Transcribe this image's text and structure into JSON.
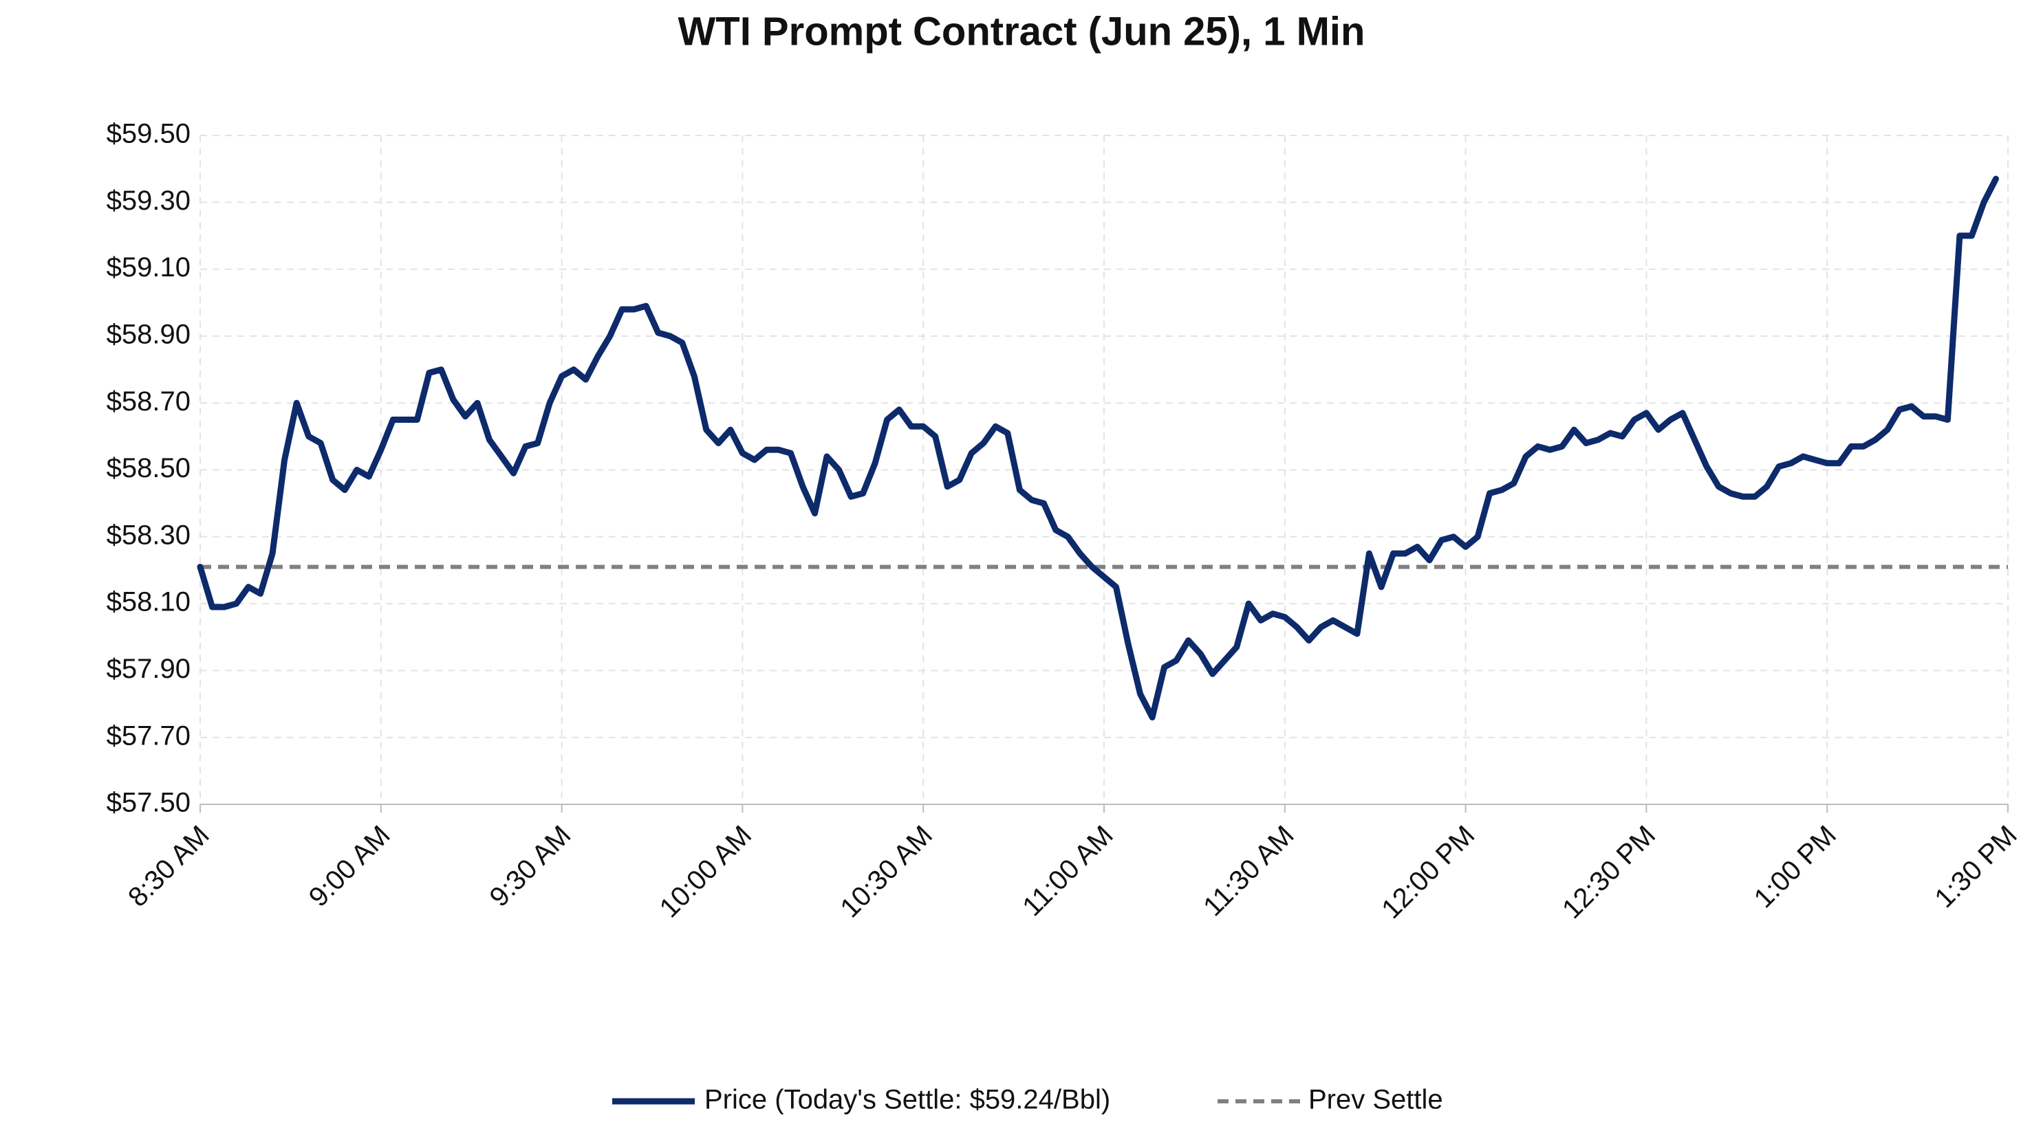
{
  "chart_data": {
    "type": "line",
    "title": "WTI Prompt Contract (Jun 25), 1 Min",
    "x": [
      "8:30 AM",
      "8:32 AM",
      "8:34 AM",
      "8:36 AM",
      "8:38 AM",
      "8:40 AM",
      "8:42 AM",
      "8:44 AM",
      "8:46 AM",
      "8:48 AM",
      "8:50 AM",
      "8:52 AM",
      "8:54 AM",
      "8:56 AM",
      "8:58 AM",
      "9:00 AM",
      "9:02 AM",
      "9:04 AM",
      "9:06 AM",
      "9:08 AM",
      "9:10 AM",
      "9:12 AM",
      "9:14 AM",
      "9:16 AM",
      "9:18 AM",
      "9:20 AM",
      "9:22 AM",
      "9:24 AM",
      "9:26 AM",
      "9:28 AM",
      "9:30 AM",
      "9:32 AM",
      "9:34 AM",
      "9:36 AM",
      "9:38 AM",
      "9:40 AM",
      "9:42 AM",
      "9:44 AM",
      "9:46 AM",
      "9:48 AM",
      "9:50 AM",
      "9:52 AM",
      "9:54 AM",
      "9:56 AM",
      "9:58 AM",
      "10:00 AM",
      "10:02 AM",
      "10:04 AM",
      "10:06 AM",
      "10:08 AM",
      "10:10 AM",
      "10:12 AM",
      "10:14 AM",
      "10:16 AM",
      "10:18 AM",
      "10:20 AM",
      "10:22 AM",
      "10:24 AM",
      "10:26 AM",
      "10:28 AM",
      "10:30 AM",
      "10:32 AM",
      "10:34 AM",
      "10:36 AM",
      "10:38 AM",
      "10:40 AM",
      "10:42 AM",
      "10:44 AM",
      "10:46 AM",
      "10:48 AM",
      "10:50 AM",
      "10:52 AM",
      "10:54 AM",
      "10:56 AM",
      "10:58 AM",
      "11:00 AM",
      "11:02 AM",
      "11:04 AM",
      "11:06 AM",
      "11:08 AM",
      "11:10 AM",
      "11:12 AM",
      "11:14 AM",
      "11:16 AM",
      "11:18 AM",
      "11:20 AM",
      "11:22 AM",
      "11:24 AM",
      "11:26 AM",
      "11:28 AM",
      "11:30 AM",
      "11:32 AM",
      "11:34 AM",
      "11:36 AM",
      "11:38 AM",
      "11:40 AM",
      "11:42 AM",
      "11:44 AM",
      "11:46 AM",
      "11:48 AM",
      "11:50 AM",
      "11:52 AM",
      "11:54 AM",
      "11:56 AM",
      "11:58 AM",
      "12:00 PM",
      "12:02 PM",
      "12:04 PM",
      "12:06 PM",
      "12:08 PM",
      "12:10 PM",
      "12:12 PM",
      "12:14 PM",
      "12:16 PM",
      "12:18 PM",
      "12:20 PM",
      "12:22 PM",
      "12:24 PM",
      "12:26 PM",
      "12:28 PM",
      "12:30 PM",
      "12:32 PM",
      "12:34 PM",
      "12:36 PM",
      "12:38 PM",
      "12:40 PM",
      "12:42 PM",
      "12:44 PM",
      "12:46 PM",
      "12:48 PM",
      "12:50 PM",
      "12:52 PM",
      "12:54 PM",
      "12:56 PM",
      "12:58 PM",
      "1:00 PM",
      "1:02 PM",
      "1:04 PM",
      "1:06 PM",
      "1:08 PM",
      "1:10 PM",
      "1:12 PM",
      "1:14 PM",
      "1:16 PM",
      "1:18 PM",
      "1:20 PM",
      "1:22 PM",
      "1:24 PM",
      "1:26 PM",
      "1:28 PM"
    ],
    "series": [
      {
        "name": "Price (Today's Settle: $59.24/Bbl)",
        "color": "#0d2a6b",
        "values": [
          58.21,
          58.09,
          58.09,
          58.1,
          58.15,
          58.13,
          58.25,
          58.53,
          58.7,
          58.6,
          58.58,
          58.47,
          58.44,
          58.5,
          58.48,
          58.56,
          58.65,
          58.65,
          58.65,
          58.79,
          58.8,
          58.71,
          58.66,
          58.7,
          58.59,
          58.54,
          58.49,
          58.57,
          58.58,
          58.7,
          58.78,
          58.8,
          58.77,
          58.84,
          58.9,
          58.98,
          58.98,
          58.99,
          58.91,
          58.9,
          58.88,
          58.78,
          58.62,
          58.58,
          58.62,
          58.55,
          58.53,
          58.56,
          58.56,
          58.55,
          58.45,
          58.37,
          58.54,
          58.5,
          58.42,
          58.43,
          58.52,
          58.65,
          58.68,
          58.63,
          58.63,
          58.6,
          58.45,
          58.47,
          58.55,
          58.58,
          58.63,
          58.61,
          58.44,
          58.41,
          58.4,
          58.32,
          58.3,
          58.25,
          58.21,
          58.18,
          58.15,
          57.98,
          57.83,
          57.76,
          57.91,
          57.93,
          57.99,
          57.95,
          57.89,
          57.93,
          57.97,
          58.1,
          58.05,
          58.07,
          58.06,
          58.03,
          57.99,
          58.03,
          58.05,
          58.03,
          58.01,
          58.25,
          58.15,
          58.25,
          58.25,
          58.27,
          58.23,
          58.29,
          58.3,
          58.27,
          58.3,
          58.43,
          58.44,
          58.46,
          58.54,
          58.57,
          58.56,
          58.57,
          58.62,
          58.58,
          58.59,
          58.61,
          58.6,
          58.65,
          58.67,
          58.62,
          58.65,
          58.67,
          58.59,
          58.51,
          58.45,
          58.43,
          58.42,
          58.42,
          58.45,
          58.51,
          58.52,
          58.54,
          58.53,
          58.52,
          58.52,
          58.57,
          58.57,
          58.59,
          58.62,
          58.68,
          58.69,
          58.66,
          58.66,
          58.65,
          59.2,
          59.2,
          59.3,
          59.37
        ]
      }
    ],
    "reference": {
      "name": "Prev Settle",
      "value": 58.21,
      "color": "#808080",
      "dashed": true
    },
    "xlim": [
      "8:30 AM",
      "1:30 PM"
    ],
    "xticks": [
      "8:30 AM",
      "9:00 AM",
      "9:30 AM",
      "10:00 AM",
      "10:30 AM",
      "11:00 AM",
      "11:30 AM",
      "12:00 PM",
      "12:30 PM",
      "1:00 PM",
      "1:30 PM"
    ],
    "ylim": [
      57.5,
      59.5
    ],
    "yticks": [
      {
        "value": 57.5,
        "label": "$57.50"
      },
      {
        "value": 57.7,
        "label": "$57.70"
      },
      {
        "value": 57.9,
        "label": "$57.90"
      },
      {
        "value": 58.1,
        "label": "$58.10"
      },
      {
        "value": 58.3,
        "label": "$58.30"
      },
      {
        "value": 58.5,
        "label": "$58.50"
      },
      {
        "value": 58.7,
        "label": "$58.70"
      },
      {
        "value": 58.9,
        "label": "$58.90"
      },
      {
        "value": 59.1,
        "label": "$59.10"
      },
      {
        "value": 59.3,
        "label": "$59.30"
      },
      {
        "value": 59.5,
        "label": "$59.50"
      }
    ],
    "grid": true,
    "legend": "bottom"
  }
}
